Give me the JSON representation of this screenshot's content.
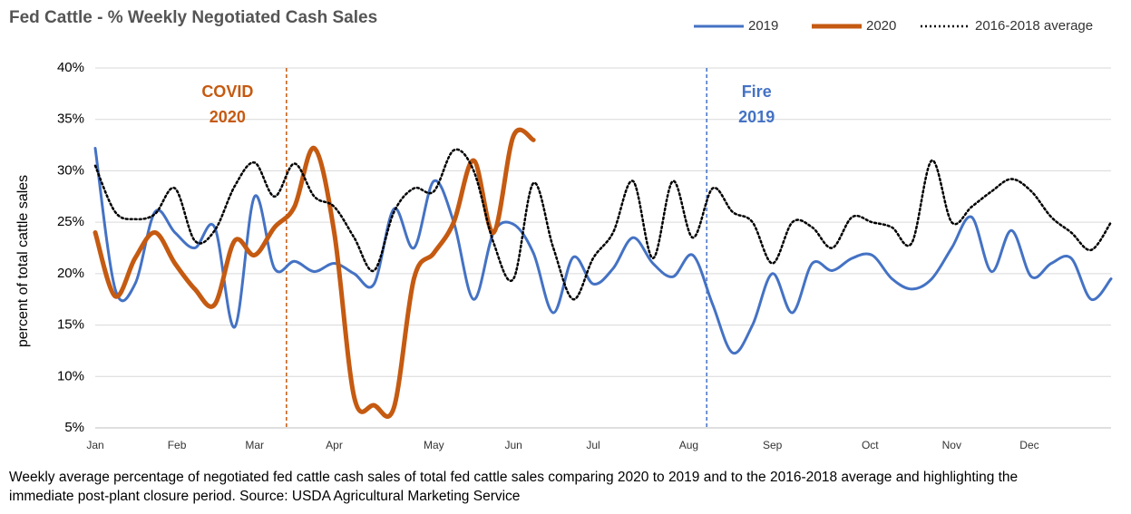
{
  "chart_data": {
    "type": "line",
    "title": "Fed Cattle - % Weekly Negotiated Cash Sales",
    "ylabel": "percent of total cattle sales",
    "caption": "Weekly average percentage of negotiated fed cattle cash sales of total fed cattle sales comparing 2020 to 2019 and to the 2016-2018 average and highlighting the immediate post-plant closure period. Source: USDA Agricultural Marketing Service",
    "x": [
      1,
      2,
      3,
      4,
      5,
      6,
      7,
      8,
      9,
      10,
      11,
      12,
      13,
      14,
      15,
      16,
      17,
      18,
      19,
      20,
      21,
      22,
      23,
      24,
      25,
      26,
      27,
      28,
      29,
      30,
      31,
      32,
      33,
      34,
      35,
      36,
      37,
      38,
      39,
      40,
      41,
      42,
      43,
      44,
      45,
      46,
      47,
      48,
      49,
      50,
      51,
      52
    ],
    "xlim": [
      1,
      52
    ],
    "xticks": [
      {
        "value": 1,
        "label": "Jan"
      },
      {
        "value": 5.1,
        "label": "Feb"
      },
      {
        "value": 9,
        "label": "Mar"
      },
      {
        "value": 13,
        "label": "Apr"
      },
      {
        "value": 18,
        "label": "May"
      },
      {
        "value": 22,
        "label": "Jun"
      },
      {
        "value": 26,
        "label": "Jul"
      },
      {
        "value": 30.8,
        "label": "Aug"
      },
      {
        "value": 35,
        "label": "Sep"
      },
      {
        "value": 39.9,
        "label": "Oct"
      },
      {
        "value": 44,
        "label": "Nov"
      },
      {
        "value": 47.9,
        "label": "Dec"
      }
    ],
    "ylim": [
      5,
      40
    ],
    "yticks": [
      {
        "value": 5,
        "label": "5%"
      },
      {
        "value": 10,
        "label": "10%"
      },
      {
        "value": 15,
        "label": "15%"
      },
      {
        "value": 20,
        "label": "20%"
      },
      {
        "value": 25,
        "label": "25%"
      },
      {
        "value": 30,
        "label": "30%"
      },
      {
        "value": 35,
        "label": "35%"
      },
      {
        "value": 40,
        "label": "40%"
      }
    ],
    "grid": true,
    "legend": "top-right",
    "series": [
      {
        "name": "2019",
        "color": "#4472c4",
        "width": 3,
        "style": "solid",
        "values": [
          32.2,
          18.5,
          19,
          26,
          24,
          22.5,
          24.5,
          14.8,
          27.5,
          20.5,
          21.2,
          20.2,
          21,
          20,
          19,
          26.3,
          22.5,
          29,
          25,
          17.5,
          24,
          24.8,
          22,
          16.2,
          21.6,
          19,
          20.5,
          23.5,
          21,
          19.7,
          21.8,
          17,
          12.3,
          15,
          20,
          16.2,
          21,
          20.3,
          21.5,
          21.8,
          19.5,
          18.5,
          19.5,
          22.5,
          25.5,
          20.2,
          24.2,
          19.7,
          21,
          21.5,
          17.5,
          19.5
        ]
      },
      {
        "name": "2020",
        "color": "#c55a11",
        "width": 5,
        "style": "solid",
        "values": [
          24,
          17.8,
          21.5,
          24,
          21,
          18.5,
          17,
          23.2,
          21.8,
          24.5,
          26.5,
          32.2,
          24,
          8,
          7.2,
          7,
          19.5,
          22,
          25,
          31,
          24,
          33.4,
          33,
          null,
          null,
          null,
          null,
          null,
          null,
          null,
          null,
          null,
          null,
          null,
          null,
          null,
          null,
          null,
          null,
          null,
          null,
          null,
          null,
          null,
          null,
          null,
          null,
          null,
          null,
          null,
          null,
          null
        ]
      },
      {
        "name": "2016-2018 average",
        "color": "#000000",
        "width": 2.5,
        "style": "dotted",
        "values": [
          30.5,
          26,
          25.3,
          25.8,
          28.3,
          23.2,
          24.2,
          28.5,
          30.8,
          27.5,
          30.7,
          27.5,
          26.5,
          23.5,
          20.3,
          26,
          28.3,
          28,
          32,
          30,
          23,
          19.5,
          28.8,
          22.5,
          17.5,
          21.5,
          24,
          29,
          21.5,
          29,
          23.5,
          28.3,
          26,
          25,
          21,
          25,
          24.5,
          22.5,
          25.5,
          25,
          24.5,
          23,
          31,
          25,
          26.5,
          28,
          29.2,
          28,
          25.5,
          24,
          22.3,
          25
        ]
      }
    ],
    "annotations": [
      {
        "lines": [
          "COVID",
          "2020"
        ],
        "x": 10.6,
        "color": "#c55a11"
      },
      {
        "lines": [
          "Fire",
          "2019"
        ],
        "x": 31.7,
        "color": "#4472c4"
      }
    ]
  }
}
